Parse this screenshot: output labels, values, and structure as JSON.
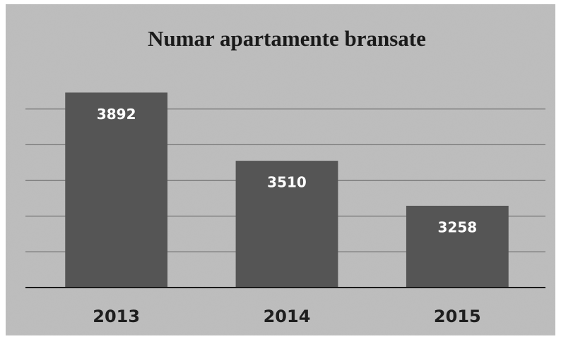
{
  "chart_data": {
    "type": "bar",
    "title": "Numar apartamente bransate",
    "categories": [
      "2013",
      "2014",
      "2015"
    ],
    "values": [
      3892,
      3510,
      3258
    ],
    "color": "#555555",
    "ylim": [
      2800,
      4000
    ],
    "yticks": [
      3000,
      3200,
      3400,
      3600,
      3800
    ],
    "grid": true
  }
}
